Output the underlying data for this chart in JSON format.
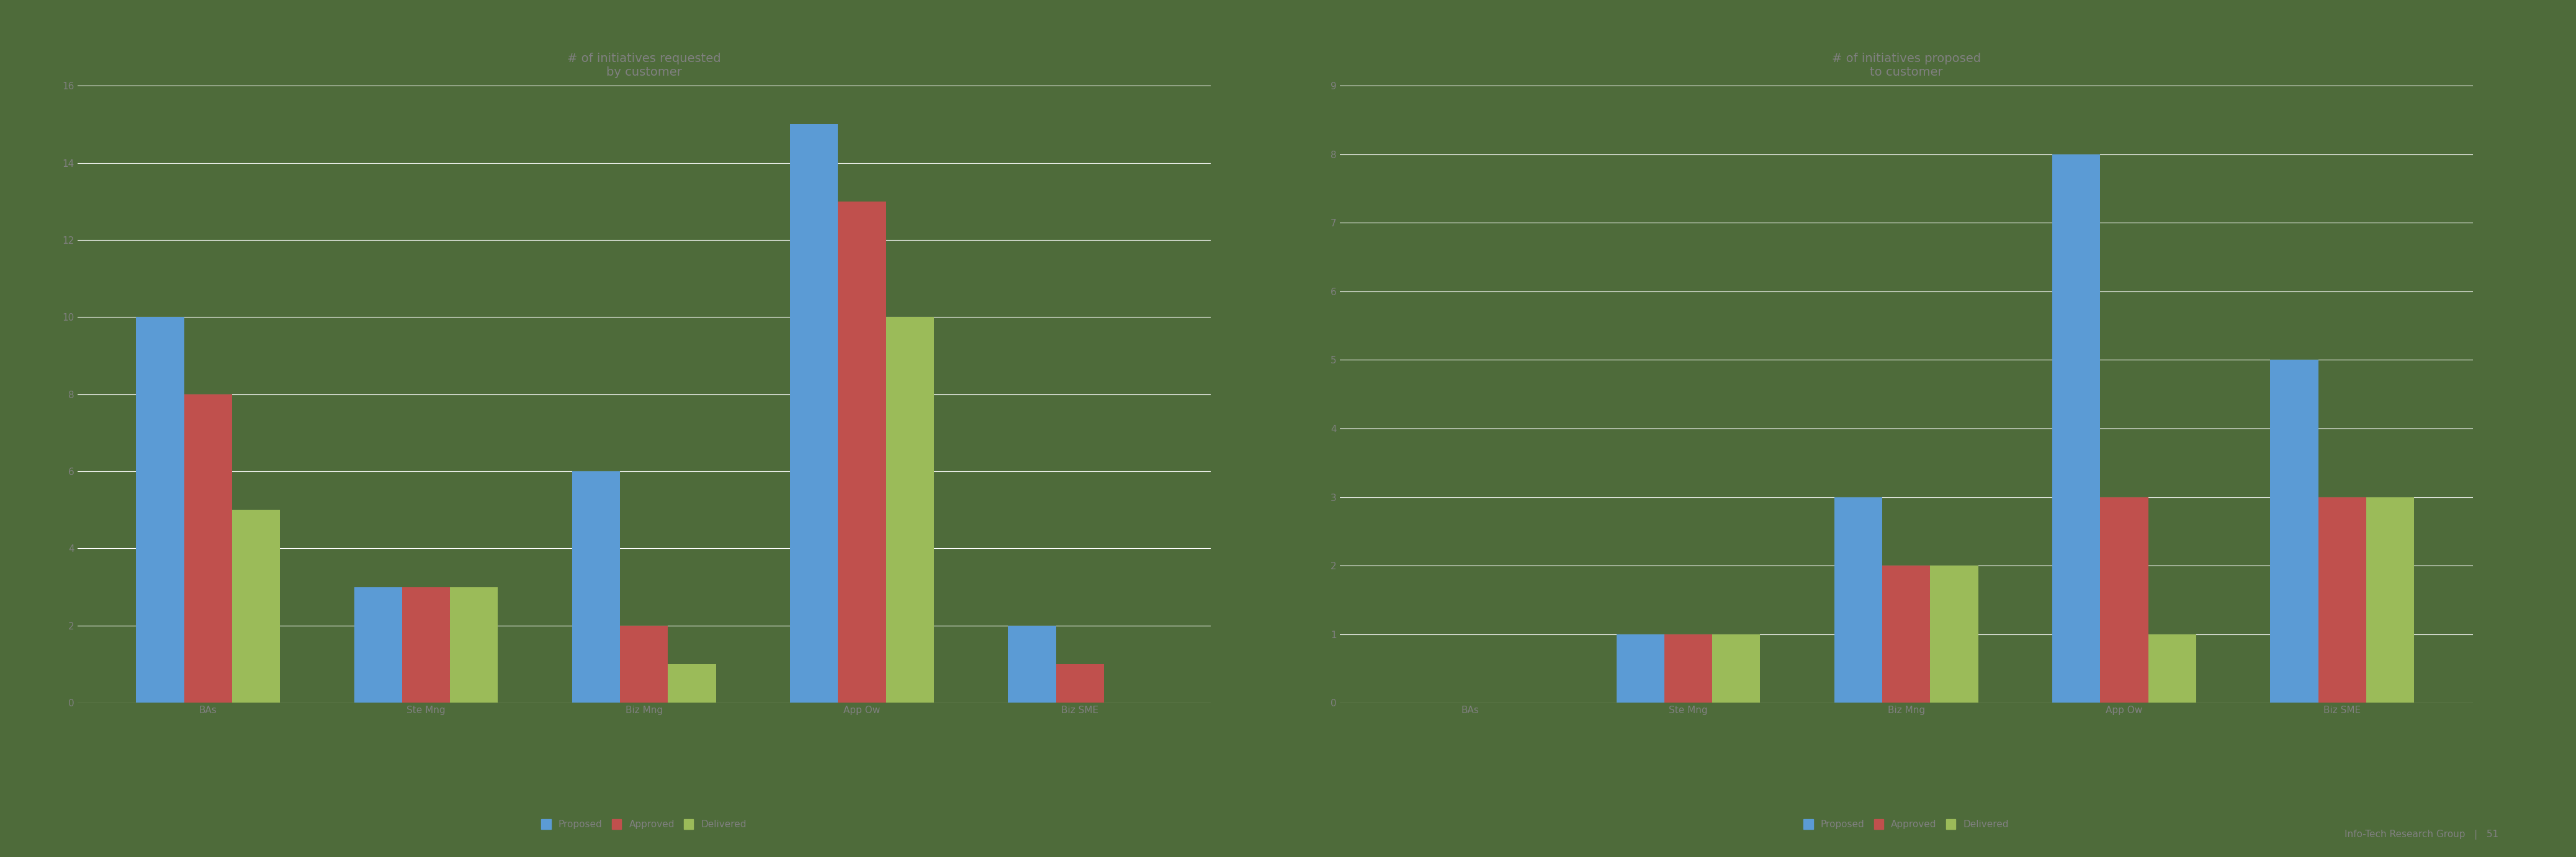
{
  "chart1": {
    "title": "# of initiatives requested\nby customer",
    "categories": [
      "BAs",
      "Ste Mng",
      "Biz Mng",
      "App Ow",
      "Biz SME"
    ],
    "proposed": [
      10,
      3,
      6,
      15,
      2
    ],
    "approved": [
      8,
      3,
      2,
      13,
      1
    ],
    "delivered": [
      5,
      3,
      1,
      10,
      0
    ],
    "ylim": [
      0,
      16
    ],
    "yticks": [
      0,
      2,
      4,
      6,
      8,
      10,
      12,
      14,
      16
    ]
  },
  "chart2": {
    "title": "# of initiatives proposed\nto customer",
    "categories": [
      "BAs",
      "Ste Mng",
      "Biz Mng",
      "App Ow",
      "Biz SME"
    ],
    "proposed": [
      0,
      1,
      3,
      8,
      5
    ],
    "approved": [
      0,
      1,
      2,
      3,
      3
    ],
    "delivered": [
      0,
      1,
      2,
      1,
      3
    ],
    "ylim": [
      0,
      9
    ],
    "yticks": [
      0,
      1,
      2,
      3,
      4,
      5,
      6,
      7,
      8,
      9
    ]
  },
  "color_proposed": "#5B9BD5",
  "color_approved": "#C0504D",
  "color_delivered": "#9BBB59",
  "background_color": "#4E6B3A",
  "text_color": "#808080",
  "grid_color": "#FFFFFF",
  "legend_labels": [
    "Proposed",
    "Approved",
    "Delivered"
  ],
  "footer_text": "Info-Tech Research Group   |   51",
  "title_fontsize": 14,
  "tick_fontsize": 11,
  "legend_fontsize": 11,
  "bar_width": 0.22
}
